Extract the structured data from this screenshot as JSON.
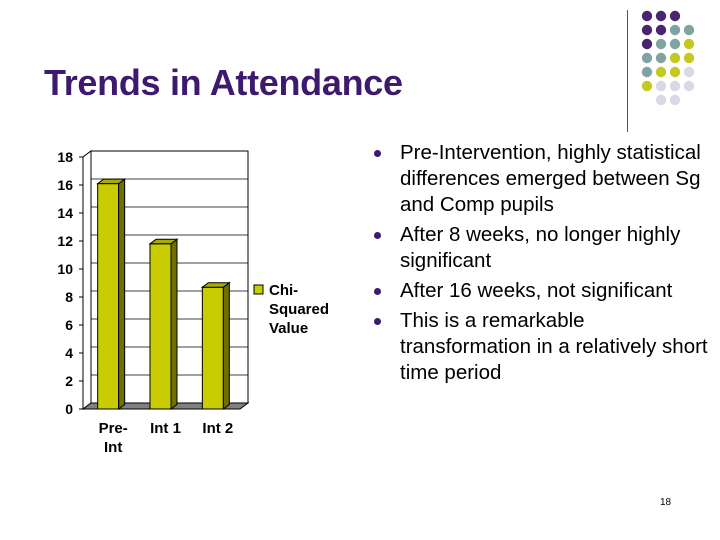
{
  "title": "Trends in Attendance",
  "page_number": "18",
  "theme": {
    "title_color": "#3d1a6e",
    "dot_colors": [
      "#4a2470",
      "#7fa3a0",
      "#c4c920",
      "#d8d8e6"
    ]
  },
  "bullets": [
    "Pre-Intervention, highly statistical differences emerged between Sg and Comp pupils",
    "After 8 weeks, no longer highly significant",
    "After 16 weeks, not significant",
    "This is a remarkable transformation in a relatively short time period"
  ],
  "chart_data": {
    "type": "bar",
    "categories": [
      "Pre-Int",
      "Int 1",
      "Int 2"
    ],
    "category_lines": [
      [
        "Pre-",
        "Int"
      ],
      [
        "Int 1"
      ],
      [
        "Int 2"
      ]
    ],
    "series": [
      {
        "name": "Chi-Squared Value",
        "legend_lines": [
          "Chi-",
          "Squared",
          "Value"
        ],
        "values": [
          16.1,
          11.8,
          8.7
        ],
        "color": "#c8cc00"
      }
    ],
    "ylim": [
      0,
      18
    ],
    "yticks": [
      0,
      2,
      4,
      6,
      8,
      10,
      12,
      14,
      16,
      18
    ],
    "grid": true,
    "legend": "right",
    "title": "",
    "xlabel": "",
    "ylabel": ""
  }
}
